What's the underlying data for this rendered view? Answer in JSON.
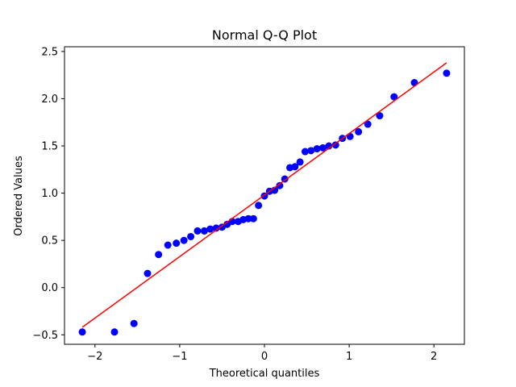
{
  "chart_data": {
    "type": "scatter",
    "title": "Normal Q-Q Plot",
    "xlabel": "Theoretical quantiles",
    "ylabel": "Ordered Values",
    "xlim": [
      -2.36,
      2.36
    ],
    "ylim": [
      -0.6,
      2.55
    ],
    "xticks": [
      -2,
      -1,
      0,
      1,
      2
    ],
    "yticks": [
      -0.5,
      0.0,
      0.5,
      1.0,
      1.5,
      2.0,
      2.5
    ],
    "grid": false,
    "marker_color": "#0000ff",
    "line_color": "#ff0000",
    "points": {
      "x": [
        -2.15,
        -1.77,
        -1.54,
        -1.38,
        -1.25,
        -1.14,
        -1.04,
        -0.95,
        -0.87,
        -0.79,
        -0.71,
        -0.64,
        -0.57,
        -0.5,
        -0.44,
        -0.38,
        -0.31,
        -0.25,
        -0.19,
        -0.13,
        -0.07,
        0.0,
        0.06,
        0.12,
        0.18,
        0.24,
        0.3,
        0.36,
        0.42,
        0.48,
        0.55,
        0.62,
        0.69,
        0.76,
        0.84,
        0.92,
        1.01,
        1.11,
        1.22,
        1.36,
        1.53,
        1.77,
        2.15
      ],
      "y": [
        -0.47,
        -0.47,
        -0.38,
        0.15,
        0.35,
        0.45,
        0.47,
        0.5,
        0.54,
        0.6,
        0.6,
        0.62,
        0.63,
        0.64,
        0.67,
        0.7,
        0.7,
        0.72,
        0.73,
        0.73,
        0.87,
        0.97,
        1.02,
        1.03,
        1.08,
        1.15,
        1.27,
        1.28,
        1.33,
        1.44,
        1.45,
        1.47,
        1.48,
        1.5,
        1.51,
        1.58,
        1.6,
        1.65,
        1.73,
        1.82,
        2.02,
        2.17,
        2.27
      ]
    },
    "fit_line": {
      "x": [
        -2.15,
        2.15
      ],
      "y": [
        -0.42,
        2.38
      ]
    }
  }
}
